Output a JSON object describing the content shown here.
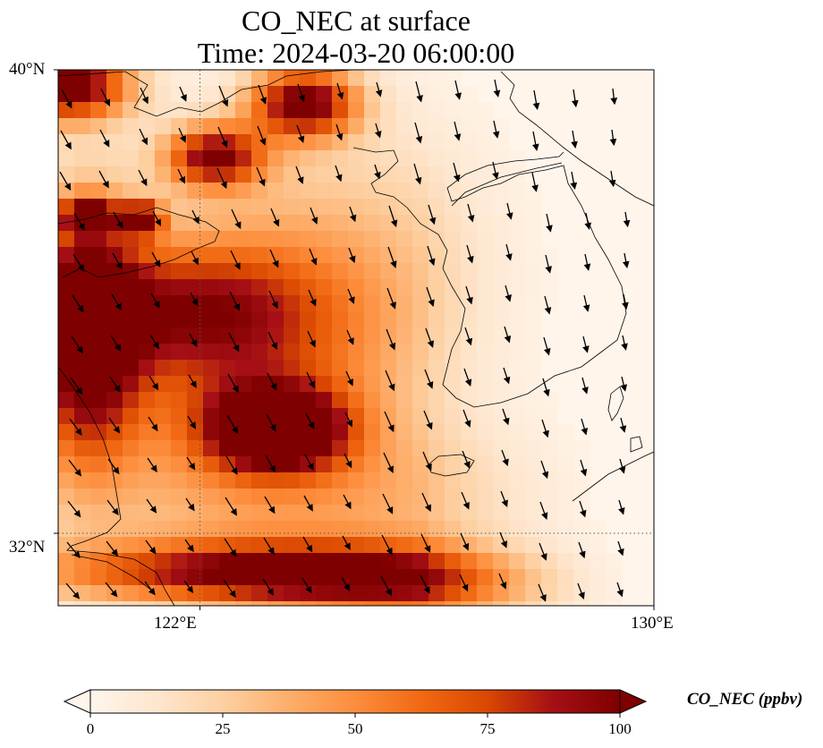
{
  "title": {
    "line1": "CO_NEC at surface",
    "line2": "Time: 2024-03-20 06:00:00"
  },
  "map": {
    "lon_range": [
      119.5,
      130
    ],
    "lat_range": [
      30.75,
      40
    ],
    "lat_ticks": [
      {
        "value": 40,
        "label": "40°N"
      },
      {
        "value": 32,
        "label": "32°N"
      }
    ],
    "lon_ticks": [
      {
        "value": 122,
        "label": "122°E"
      },
      {
        "value": 130,
        "label": "130°E"
      }
    ],
    "gridlines": {
      "lon": [
        122
      ],
      "lat": [
        32
      ],
      "style": "dotted"
    },
    "features": [
      "coastlines",
      "wind-vectors",
      "concentration-field"
    ]
  },
  "colorbar": {
    "label": "CO_NEC (ppbv)",
    "ticks": [
      0,
      25,
      50,
      75,
      100
    ],
    "range": [
      0,
      100
    ],
    "extend": "both",
    "colormap": [
      "#fff5eb",
      "#fee6ce",
      "#fdd0a2",
      "#fdae6b",
      "#fd8d3c",
      "#f16913",
      "#d94801",
      "#a50f15",
      "#7f0000"
    ]
  }
}
